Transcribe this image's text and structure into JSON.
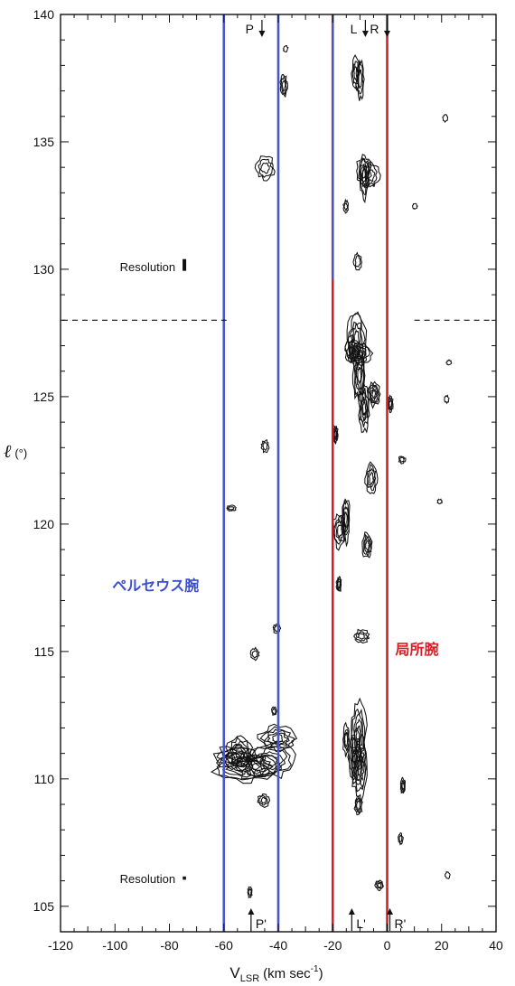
{
  "chart_data": {
    "type": "contour",
    "xlabel_main": "V",
    "xlabel_sub": "LSR",
    "xlabel_unit": "(km sec",
    "xlabel_exp": "-1",
    "xlabel_close": ")",
    "ylabel_main": "ℓ",
    "ylabel_unit": "(°)",
    "xlim": [
      -120,
      40
    ],
    "ylim": [
      104,
      140
    ],
    "x_ticks": [
      -120,
      -100,
      -80,
      -60,
      -40,
      -20,
      0,
      20,
      40
    ],
    "x_tick_labels": [
      "-120",
      "-100",
      "-80",
      "-60",
      "-40",
      "-20",
      "0",
      "20",
      "40"
    ],
    "y_ticks": [
      105,
      110,
      115,
      120,
      125,
      130,
      135,
      140
    ],
    "y_tick_labels": [
      "105",
      "110",
      "115",
      "120",
      "125",
      "130",
      "135",
      "140"
    ],
    "survey_boundary_l": 128,
    "top_markers": [
      {
        "label": "P",
        "v": -46
      },
      {
        "label": "L",
        "v": -8
      },
      {
        "label": "R",
        "v": 0
      }
    ],
    "bottom_markers": [
      {
        "label": "P'",
        "v": -50
      },
      {
        "label": "L'",
        "v": -13
      },
      {
        "label": "R'",
        "v": 1
      }
    ],
    "resolution_labels": [
      {
        "text": "Resolution",
        "v": -88,
        "l": 130.1
      },
      {
        "text": "Resolution",
        "v": -88,
        "l": 106.1
      }
    ],
    "arm_bands": [
      {
        "name": "ペルセウス腕",
        "v_min": -60,
        "v_max": -40,
        "l_max": 140,
        "color": "#4a55c8"
      },
      {
        "name": "局所腕",
        "v_min": -20,
        "v_max": 0,
        "l_max": 140,
        "color": "#d42026"
      }
    ],
    "extra_lines": [
      {
        "v": -20,
        "l_min": 129.6,
        "l_max": 140,
        "color": "#4a55c8"
      }
    ],
    "arm_labels": [
      {
        "text": "ペルセウス腕",
        "v": -101,
        "l": 117.6,
        "color": "#3a4fd0"
      },
      {
        "text": "局所腕",
        "v": 3,
        "l": 115.1,
        "color": "#d42026"
      }
    ],
    "emission_regions": [
      {
        "v": -48,
        "l": 111.0,
        "sv": 12,
        "sl": 1.0,
        "n": 5
      },
      {
        "v": -46,
        "l": 109.1,
        "sv": 4,
        "sl": 0.5,
        "n": 3
      },
      {
        "v": -45,
        "l": 133.8,
        "sv": 4,
        "sl": 0.7,
        "n": 3
      },
      {
        "v": -39,
        "l": 137.1,
        "sv": 2,
        "sl": 0.6,
        "n": 3
      },
      {
        "v": -37,
        "l": 138.6,
        "sv": 1,
        "sl": 0.3,
        "n": 1
      },
      {
        "v": -44,
        "l": 123.0,
        "sv": 2,
        "sl": 0.4,
        "n": 2
      },
      {
        "v": -58,
        "l": 120.7,
        "sv": 2,
        "sl": 0.3,
        "n": 2
      },
      {
        "v": -49,
        "l": 114.8,
        "sv": 2,
        "sl": 0.3,
        "n": 2
      },
      {
        "v": -40,
        "l": 116.0,
        "sv": 2,
        "sl": 0.3,
        "n": 2
      },
      {
        "v": -51,
        "l": 105.5,
        "sv": 2,
        "sl": 0.4,
        "n": 2
      },
      {
        "v": -41,
        "l": 112.6,
        "sv": 2,
        "sl": 0.4,
        "n": 2
      },
      {
        "v": -12,
        "l": 126.3,
        "sv": 5,
        "sl": 1.6,
        "n": 5
      },
      {
        "v": -6,
        "l": 124.6,
        "sv": 4,
        "sl": 1.2,
        "n": 5
      },
      {
        "v": -19,
        "l": 123.2,
        "sv": 2,
        "sl": 0.6,
        "n": 4
      },
      {
        "v": -5,
        "l": 121.9,
        "sv": 3,
        "sl": 1.0,
        "n": 4
      },
      {
        "v": -17,
        "l": 120.0,
        "sv": 3,
        "sl": 1.2,
        "n": 4
      },
      {
        "v": -6,
        "l": 119.0,
        "sv": 3,
        "sl": 0.8,
        "n": 4
      },
      {
        "v": -17,
        "l": 117.5,
        "sv": 2,
        "sl": 0.5,
        "n": 3
      },
      {
        "v": -8,
        "l": 115.9,
        "sv": 4,
        "sl": 0.7,
        "n": 3
      },
      {
        "v": -10,
        "l": 110.6,
        "sv": 4,
        "sl": 1.8,
        "n": 5
      },
      {
        "v": -14,
        "l": 112.0,
        "sv": 3,
        "sl": 0.8,
        "n": 3
      },
      {
        "v": -10,
        "l": 108.6,
        "sv": 2,
        "sl": 0.6,
        "n": 3
      },
      {
        "v": -2,
        "l": 106.2,
        "sv": 2,
        "sl": 0.7,
        "n": 3
      },
      {
        "v": -11,
        "l": 137.5,
        "sv": 3,
        "sl": 1.4,
        "n": 3
      },
      {
        "v": -8,
        "l": 134.0,
        "sv": 4,
        "sl": 1.4,
        "n": 3
      },
      {
        "v": -11,
        "l": 130.4,
        "sv": 3,
        "sl": 0.8,
        "n": 2
      },
      {
        "v": -14,
        "l": 132.5,
        "sv": 2,
        "sl": 0.5,
        "n": 2
      },
      {
        "v": 0,
        "l": 125.0,
        "sv": 2,
        "sl": 0.5,
        "n": 3
      },
      {
        "v": 6,
        "l": 109.6,
        "sv": 1.5,
        "sl": 0.4,
        "n": 3
      },
      {
        "v": 5,
        "l": 107.7,
        "sv": 1,
        "sl": 0.3,
        "n": 2
      },
      {
        "v": 5,
        "l": 122.6,
        "sv": 1.5,
        "sl": 0.4,
        "n": 2
      },
      {
        "v": 21,
        "l": 136.0,
        "sv": 0.6,
        "sl": 0.2,
        "n": 1
      },
      {
        "v": 23,
        "l": 126.4,
        "sv": 0.6,
        "sl": 0.2,
        "n": 1
      },
      {
        "v": 22,
        "l": 125.0,
        "sv": 0.6,
        "sl": 0.2,
        "n": 1
      },
      {
        "v": 19,
        "l": 120.8,
        "sv": 0.5,
        "sl": 0.15,
        "n": 1
      },
      {
        "v": 22,
        "l": 106.3,
        "sv": 0.5,
        "sl": 0.2,
        "n": 1
      },
      {
        "v": 10,
        "l": 132.5,
        "sv": 0.5,
        "sl": 0.15,
        "n": 1
      }
    ]
  }
}
